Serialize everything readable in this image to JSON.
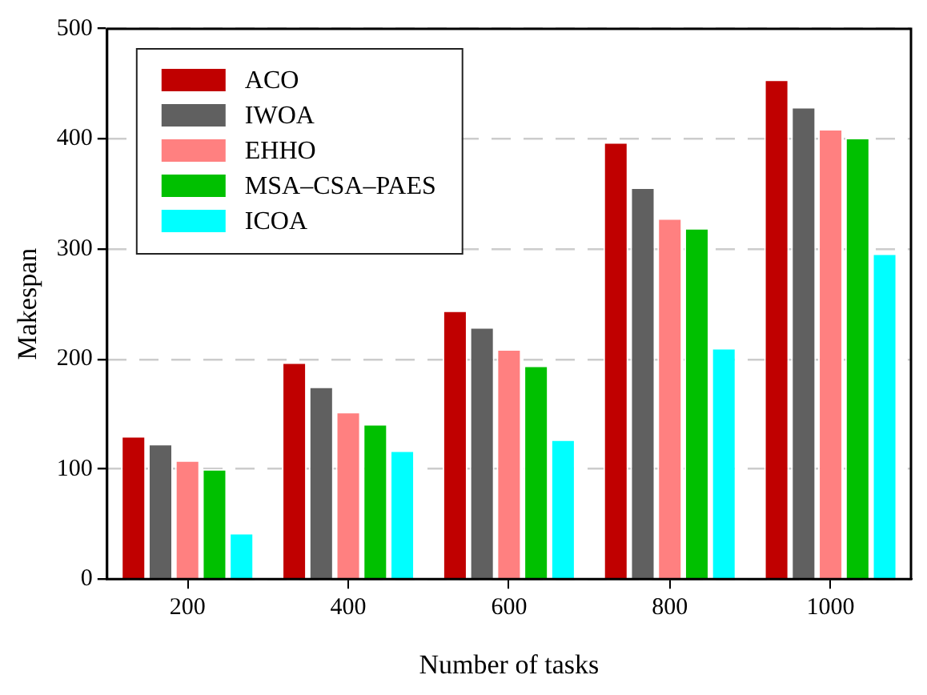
{
  "chart_data": {
    "type": "bar",
    "xlabel": "Number of tasks",
    "ylabel": "Makespan",
    "categories": [
      "200",
      "400",
      "600",
      "800",
      "1000"
    ],
    "series": [
      {
        "name": "ACO",
        "color": "#c00000",
        "values": [
          130,
          197,
          244,
          397,
          454
        ]
      },
      {
        "name": "IWOA",
        "color": "#606060",
        "values": [
          123,
          175,
          229,
          356,
          429
        ]
      },
      {
        "name": "EHHO",
        "color": "#ff8080",
        "values": [
          108,
          152,
          209,
          328,
          409
        ]
      },
      {
        "name": "MSA–CSA–PAES",
        "color": "#00c000",
        "values": [
          100,
          141,
          194,
          319,
          401
        ]
      },
      {
        "name": "ICOA",
        "color": "#00ffff",
        "values": [
          42,
          117,
          127,
          210,
          296
        ]
      }
    ],
    "ylim": [
      0,
      500
    ],
    "yticks": [
      0,
      100,
      200,
      300,
      400,
      500
    ],
    "grid": "y",
    "legend": "top left"
  }
}
